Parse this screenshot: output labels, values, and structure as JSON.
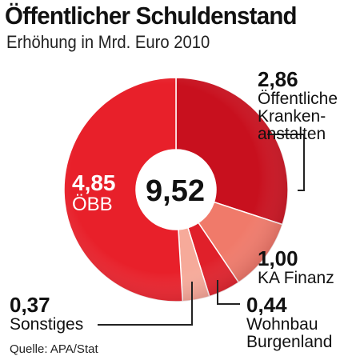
{
  "chart_data": {
    "type": "pie",
    "title": "Öffentlicher Schuldenstand",
    "subtitle": "Erhöhung in Mrd. Euro 2010",
    "total": "9,52",
    "slices": [
      {
        "value_label": "2,86",
        "label": "Öffentliche Kranken-anstalten",
        "value": 2.86,
        "color": "#c8101e"
      },
      {
        "value_label": "1,00",
        "label": "KA Finanz",
        "value": 1.0,
        "color": "#f07a6a"
      },
      {
        "value_label": "0,44",
        "label": "Wohnbau Burgenland",
        "value": 0.44,
        "color": "#e0202a"
      },
      {
        "value_label": "0,37",
        "label": "Sonstiges",
        "value": 0.37,
        "color": "#f6aa9a"
      },
      {
        "value_label": "4,85",
        "label": "ÖBB",
        "value": 4.85,
        "color": "#e8202a"
      }
    ],
    "labels": {
      "kranken_lines": [
        "Öffentliche",
        "Kranken-",
        "anstalten"
      ],
      "wohnbau_lines": [
        "Wohnbau",
        "Burgenland"
      ]
    },
    "source": "Quelle: APA/Stat"
  }
}
